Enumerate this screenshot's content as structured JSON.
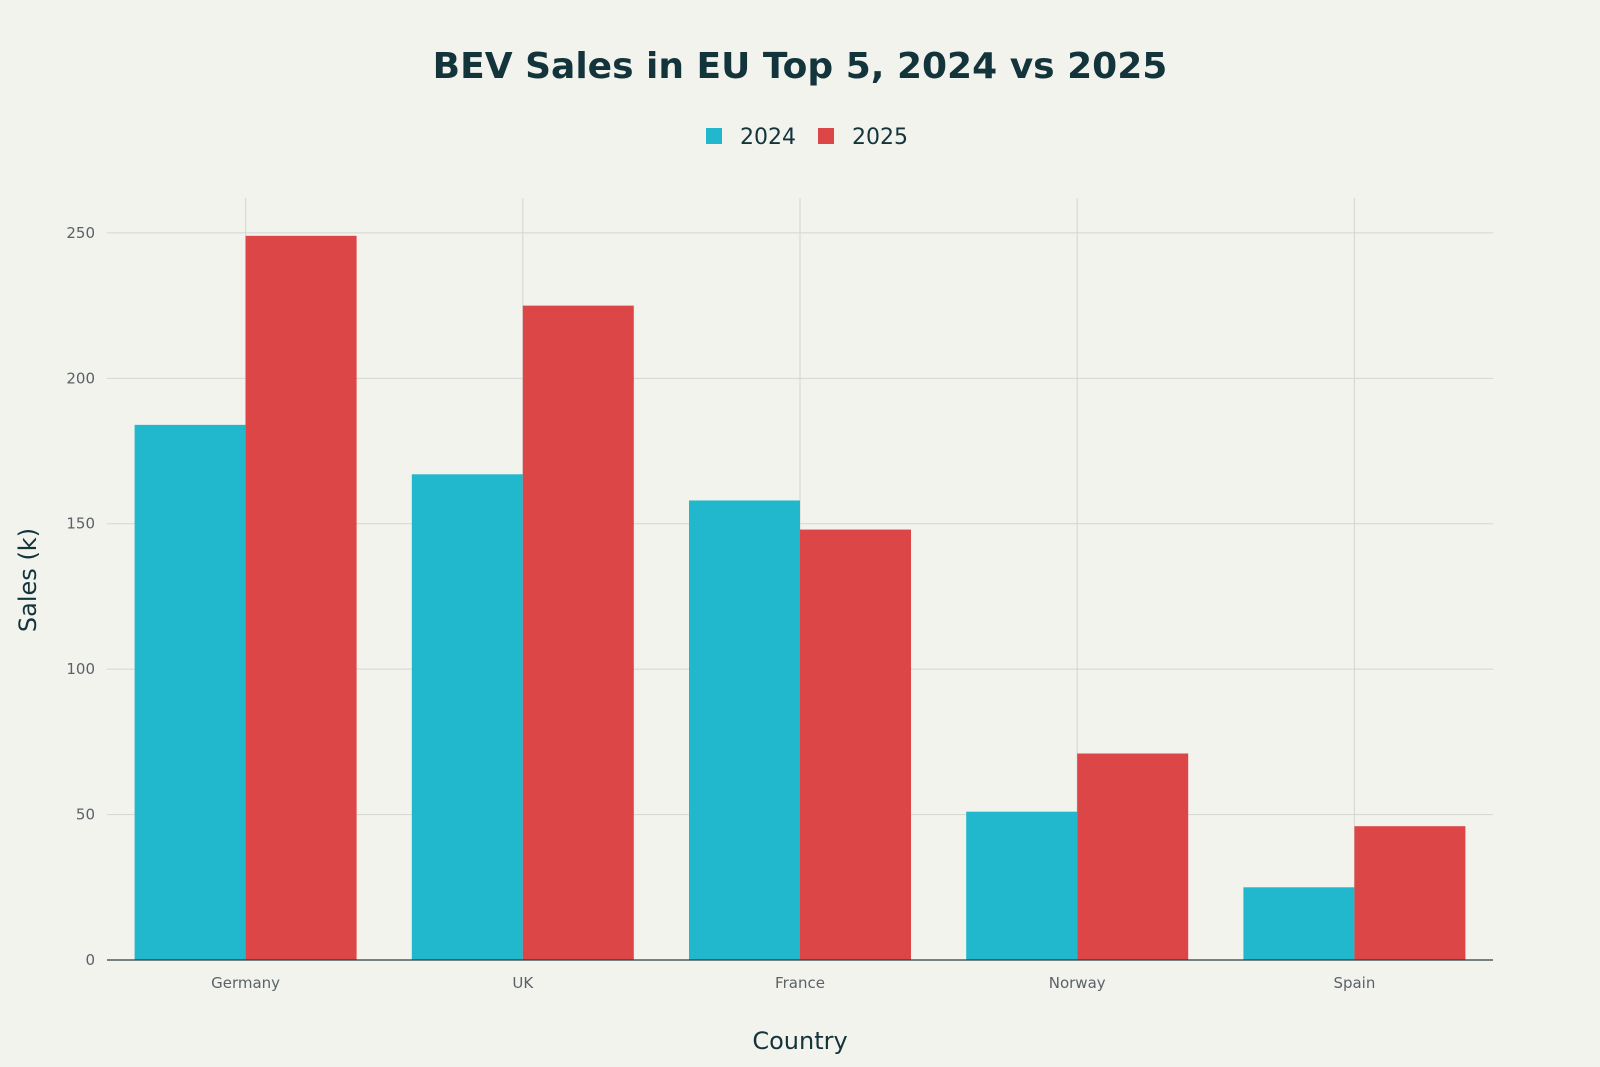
{
  "colors": {
    "background": "#f3f3ee",
    "series_2024": "#21b8cd",
    "series_2025": "#dc4646",
    "text": "#13343b"
  },
  "chart_data": {
    "type": "bar",
    "title": "BEV Sales in EU Top 5, 2024 vs 2025",
    "xlabel": "Country",
    "ylabel": "Sales (k)",
    "categories": [
      "Germany",
      "UK",
      "France",
      "Norway",
      "Spain"
    ],
    "series": [
      {
        "name": "2024",
        "color": "#21b8cd",
        "values": [
          184,
          167,
          158,
          51,
          25
        ]
      },
      {
        "name": "2025",
        "color": "#dc4646",
        "values": [
          249,
          225,
          148,
          71,
          46
        ]
      }
    ],
    "ylim": [
      0,
      262
    ],
    "yticks": [
      0,
      50,
      100,
      150,
      200,
      250
    ],
    "grid": true,
    "legend_position": "top-center"
  }
}
